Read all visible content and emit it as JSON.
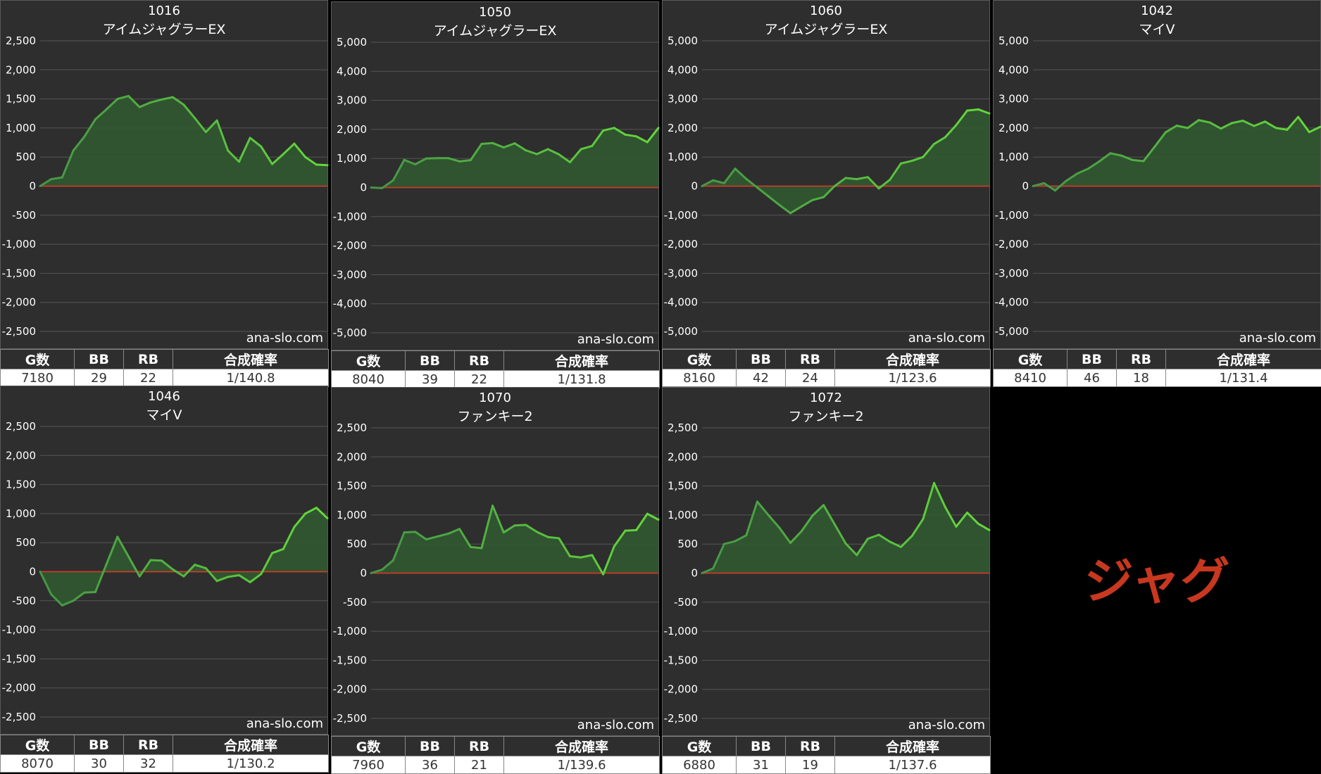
{
  "watermark": "ana-slo.com",
  "stat_headers": [
    "G数",
    "BB",
    "RB",
    "合成確率"
  ],
  "label": "ジャグ",
  "colors": {
    "line": "#5bd13a",
    "fill": "#2f5a2f",
    "zero": "#d43a2a",
    "grid": "#555555",
    "background": "#2e2e2e"
  },
  "chart_data": [
    {
      "type": "area",
      "machine_no": "1016",
      "machine_name": "アイムジャグラーEX",
      "ylim": [
        -2500,
        2500
      ],
      "ticks": [
        2500,
        2000,
        1500,
        1000,
        500,
        0,
        -500,
        -1000,
        -1500,
        -2000,
        -2500
      ],
      "tick_labels": [
        "2,500",
        "2,000",
        "1,500",
        "1,000",
        "500",
        "0",
        "-500",
        "-1,000",
        "-1,500",
        "-2,000",
        "-2,500"
      ],
      "values": [
        0,
        120,
        150,
        610,
        850,
        1150,
        1320,
        1500,
        1550,
        1360,
        1440,
        1490,
        1530,
        1400,
        1170,
        930,
        1130,
        610,
        420,
        830,
        680,
        380,
        550,
        730,
        500,
        370,
        360
      ],
      "stats": {
        "games": "7180",
        "bb": "29",
        "rb": "22",
        "ratio": "1/140.8"
      }
    },
    {
      "type": "area",
      "machine_no": "1050",
      "machine_name": "アイムジャグラーEX",
      "ylim": [
        -5000,
        5000
      ],
      "ticks": [
        5000,
        4000,
        3000,
        2000,
        1000,
        0,
        -1000,
        -2000,
        -3000,
        -4000,
        -5000
      ],
      "tick_labels": [
        "5,000",
        "4,000",
        "3,000",
        "2,000",
        "1,000",
        "0",
        "-1,000",
        "-2,000",
        "-3,000",
        "-4,000",
        "-5,000"
      ],
      "values": [
        0,
        -20,
        250,
        950,
        800,
        1000,
        1010,
        1010,
        900,
        940,
        1500,
        1530,
        1380,
        1520,
        1280,
        1150,
        1320,
        1140,
        870,
        1320,
        1430,
        1960,
        2050,
        1820,
        1760,
        1560,
        2050
      ],
      "stats": {
        "games": "8040",
        "bb": "39",
        "rb": "22",
        "ratio": "1/131.8"
      }
    },
    {
      "type": "area",
      "machine_no": "1060",
      "machine_name": "アイムジャグラーEX",
      "ylim": [
        -5000,
        5000
      ],
      "ticks": [
        5000,
        4000,
        3000,
        2000,
        1000,
        0,
        -1000,
        -2000,
        -3000,
        -4000,
        -5000
      ],
      "tick_labels": [
        "5,000",
        "4,000",
        "3,000",
        "2,000",
        "1,000",
        "0",
        "-1,000",
        "-2,000",
        "-3,000",
        "-4,000",
        "-5,000"
      ],
      "values": [
        0,
        200,
        100,
        600,
        250,
        -50,
        -350,
        -650,
        -930,
        -700,
        -480,
        -380,
        0,
        280,
        240,
        310,
        -80,
        220,
        780,
        870,
        1000,
        1450,
        1680,
        2100,
        2600,
        2640,
        2500
      ],
      "stats": {
        "games": "8160",
        "bb": "42",
        "rb": "24",
        "ratio": "1/123.6"
      }
    },
    {
      "type": "area",
      "machine_no": "1042",
      "machine_name": "マイV",
      "ylim": [
        -5000,
        5000
      ],
      "ticks": [
        5000,
        4000,
        3000,
        2000,
        1000,
        0,
        -1000,
        -2000,
        -3000,
        -4000,
        -5000
      ],
      "tick_labels": [
        "5,000",
        "4,000",
        "3,000",
        "2,000",
        "1,000",
        "0",
        "-1,000",
        "-2,000",
        "-3,000",
        "-4,000",
        "-5,000"
      ],
      "values": [
        0,
        100,
        -150,
        180,
        430,
        600,
        850,
        1130,
        1050,
        900,
        860,
        1350,
        1850,
        2080,
        2000,
        2270,
        2190,
        1980,
        2170,
        2250,
        2070,
        2220,
        2000,
        1940,
        2380,
        1860,
        2040
      ],
      "stats": {
        "games": "8410",
        "bb": "46",
        "rb": "18",
        "ratio": "1/131.4"
      }
    },
    {
      "type": "area",
      "machine_no": "1046",
      "machine_name": "マイV",
      "ylim": [
        -2500,
        2500
      ],
      "ticks": [
        2500,
        2000,
        1500,
        1000,
        500,
        0,
        -500,
        -1000,
        -1500,
        -2000,
        -2500
      ],
      "tick_labels": [
        "2,500",
        "2,000",
        "1,500",
        "1,000",
        "500",
        "0",
        "-500",
        "-1,000",
        "-1,500",
        "-2,000",
        "-2,500"
      ],
      "values": [
        0,
        -390,
        -580,
        -500,
        -360,
        -350,
        130,
        600,
        260,
        -80,
        200,
        190,
        40,
        -80,
        120,
        60,
        -160,
        -90,
        -60,
        -180,
        -40,
        320,
        390,
        770,
        1000,
        1100,
        920
      ],
      "stats": {
        "games": "8070",
        "bb": "30",
        "rb": "32",
        "ratio": "1/130.2"
      }
    },
    {
      "type": "area",
      "machine_no": "1070",
      "machine_name": "ファンキー2",
      "ylim": [
        -2500,
        2500
      ],
      "ticks": [
        2500,
        2000,
        1500,
        1000,
        500,
        0,
        -500,
        -1000,
        -1500,
        -2000,
        -2500
      ],
      "tick_labels": [
        "2,500",
        "2,000",
        "1,500",
        "1,000",
        "500",
        "0",
        "-500",
        "-1,000",
        "-1,500",
        "-2,000",
        "-2,500"
      ],
      "values": [
        0,
        60,
        220,
        700,
        710,
        580,
        630,
        680,
        760,
        450,
        430,
        1160,
        700,
        820,
        830,
        710,
        620,
        600,
        290,
        270,
        310,
        -20,
        460,
        730,
        740,
        1020,
        920
      ],
      "stats": {
        "games": "7960",
        "bb": "36",
        "rb": "21",
        "ratio": "1/139.6"
      }
    },
    {
      "type": "area",
      "machine_no": "1072",
      "machine_name": "ファンキー2",
      "ylim": [
        -2500,
        2500
      ],
      "ticks": [
        2500,
        2000,
        1500,
        1000,
        500,
        0,
        -500,
        -1000,
        -1500,
        -2000,
        -2500
      ],
      "tick_labels": [
        "2,500",
        "2,000",
        "1,500",
        "1,000",
        "500",
        "0",
        "-500",
        "-1,000",
        "-1,500",
        "-2,000",
        "-2,500"
      ],
      "values": [
        0,
        80,
        500,
        550,
        650,
        1230,
        1000,
        780,
        520,
        720,
        990,
        1170,
        840,
        510,
        310,
        590,
        660,
        540,
        450,
        640,
        930,
        1550,
        1140,
        800,
        1040,
        850,
        740
      ],
      "stats": {
        "games": "6880",
        "bb": "31",
        "rb": "19",
        "ratio": "1/137.6"
      }
    }
  ]
}
